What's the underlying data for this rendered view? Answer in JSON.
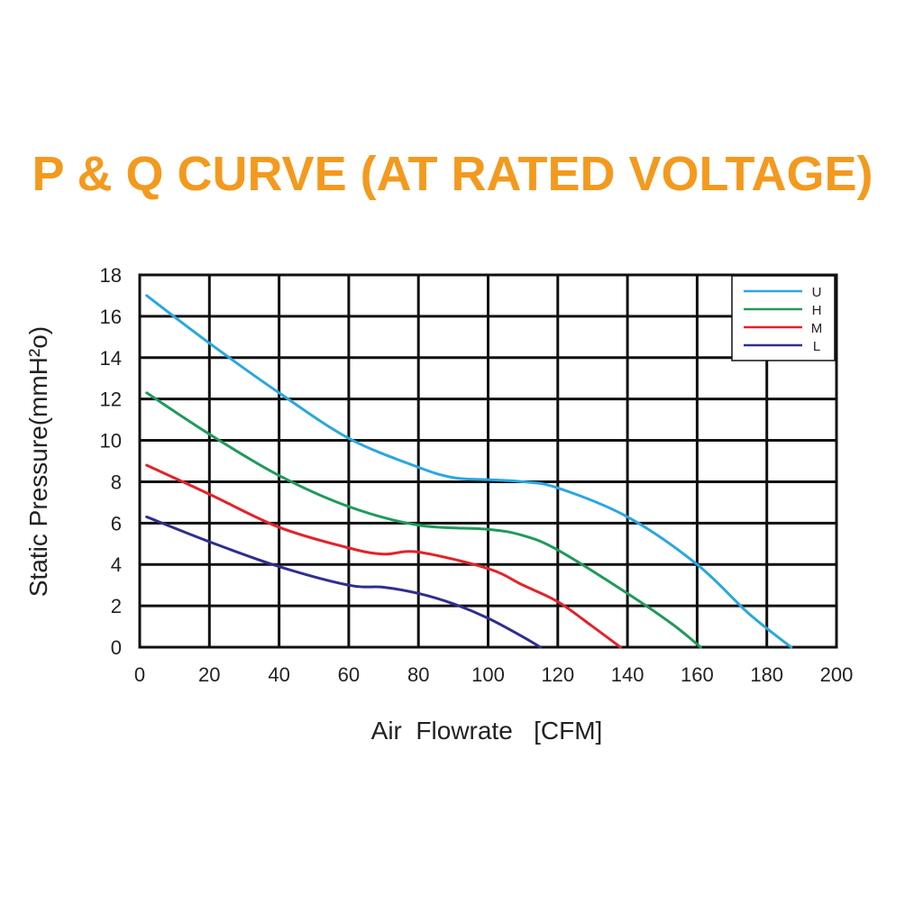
{
  "chart_data": {
    "type": "line",
    "title": "P & Q CURVE (AT RATED VOLTAGE)",
    "xlabel": "Air  Flowrate   [CFM]",
    "ylabel": "Static Pressure(mmH²o)",
    "xlim": [
      0,
      200
    ],
    "ylim": [
      0,
      18
    ],
    "xticks": [
      0,
      20,
      40,
      60,
      80,
      100,
      120,
      140,
      160,
      180,
      200
    ],
    "yticks": [
      0,
      2,
      4,
      6,
      8,
      10,
      12,
      14,
      16,
      18
    ],
    "grid": true,
    "legend_position": "top-right",
    "series": [
      {
        "name": "U",
        "color": "#2aa7e0",
        "points": [
          [
            2,
            17.0
          ],
          [
            20,
            14.7
          ],
          [
            40,
            12.3
          ],
          [
            60,
            10.1
          ],
          [
            80,
            8.7
          ],
          [
            90,
            8.2
          ],
          [
            100,
            8.1
          ],
          [
            110,
            8.0
          ],
          [
            120,
            7.7
          ],
          [
            140,
            6.3
          ],
          [
            160,
            4.0
          ],
          [
            175,
            1.6
          ],
          [
            187,
            0.0
          ]
        ]
      },
      {
        "name": "H",
        "color": "#1f9a5a",
        "points": [
          [
            2,
            12.3
          ],
          [
            20,
            10.3
          ],
          [
            40,
            8.3
          ],
          [
            60,
            6.8
          ],
          [
            80,
            5.9
          ],
          [
            100,
            5.7
          ],
          [
            110,
            5.4
          ],
          [
            120,
            4.7
          ],
          [
            140,
            2.6
          ],
          [
            153,
            1.1
          ],
          [
            161,
            0.0
          ]
        ]
      },
      {
        "name": "M",
        "color": "#e4222a",
        "points": [
          [
            2,
            8.8
          ],
          [
            20,
            7.4
          ],
          [
            40,
            5.8
          ],
          [
            60,
            4.8
          ],
          [
            70,
            4.5
          ],
          [
            80,
            4.6
          ],
          [
            100,
            3.8
          ],
          [
            110,
            3.0
          ],
          [
            120,
            2.2
          ],
          [
            130,
            1.0
          ],
          [
            138,
            0.0
          ]
        ]
      },
      {
        "name": "L",
        "color": "#2e2f8f",
        "points": [
          [
            2,
            6.3
          ],
          [
            20,
            5.1
          ],
          [
            40,
            3.9
          ],
          [
            60,
            3.0
          ],
          [
            70,
            2.9
          ],
          [
            80,
            2.6
          ],
          [
            90,
            2.1
          ],
          [
            100,
            1.4
          ],
          [
            110,
            0.5
          ],
          [
            115,
            0.0
          ]
        ]
      }
    ]
  }
}
